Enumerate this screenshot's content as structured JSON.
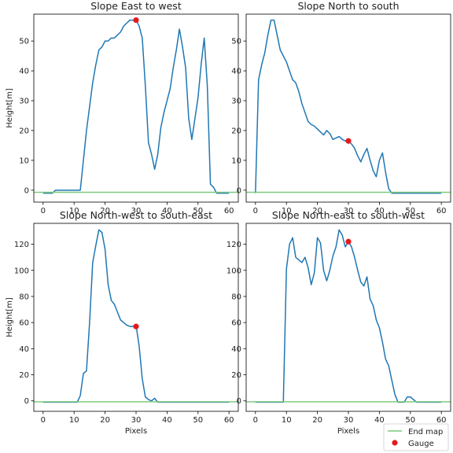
{
  "chart_data": [
    {
      "type": "line",
      "title": "Slope East to west",
      "xlabel": "",
      "ylabel": "Height[m]",
      "xlim": [
        -3,
        63
      ],
      "ylim": [
        -4,
        59
      ],
      "xticks": [
        0,
        10,
        20,
        30,
        40,
        50,
        60
      ],
      "yticks": [
        0,
        10,
        20,
        30,
        40,
        50
      ],
      "show_xtick_labels": true,
      "series": [
        {
          "role": "profile",
          "x": [
            0,
            1,
            2,
            3,
            4,
            5,
            6,
            7,
            8,
            9,
            10,
            11,
            12,
            13,
            14,
            15,
            16,
            17,
            18,
            19,
            20,
            21,
            22,
            23,
            24,
            25,
            26,
            27,
            28,
            29,
            30,
            31,
            32,
            33,
            34,
            35,
            36,
            37,
            38,
            39,
            40,
            41,
            42,
            43,
            44,
            45,
            46,
            47,
            48,
            49,
            50,
            51,
            52,
            53,
            54,
            55,
            56,
            57,
            58,
            59,
            60
          ],
          "y": [
            -1,
            -1,
            -1,
            -1,
            0,
            0,
            0,
            0,
            0,
            0,
            0,
            0,
            0,
            10,
            20,
            28,
            36,
            42,
            47,
            48,
            50,
            50,
            51,
            51,
            52,
            53,
            55,
            56,
            57,
            57,
            57,
            55,
            51,
            35,
            16,
            12,
            7,
            12,
            21,
            26,
            30,
            34,
            41,
            47,
            54,
            48,
            41,
            24,
            17,
            24,
            31,
            42,
            51,
            35,
            2,
            1,
            -1,
            -1,
            -1,
            -1,
            -1
          ]
        },
        {
          "role": "end_map",
          "name": "End map",
          "y": -0.7
        },
        {
          "role": "gauge",
          "name": "Gauge",
          "x": 30,
          "y": 57
        }
      ]
    },
    {
      "type": "line",
      "title": "Slope North to south",
      "xlabel": "",
      "ylabel": "",
      "xlim": [
        -3,
        63
      ],
      "ylim": [
        -4,
        59
      ],
      "xticks": [
        0,
        10,
        20,
        30,
        40,
        50,
        60
      ],
      "yticks": [
        0,
        10,
        20,
        30,
        40,
        50
      ],
      "show_xtick_labels": true,
      "series": [
        {
          "role": "profile",
          "x": [
            0,
            1,
            2,
            3,
            4,
            5,
            6,
            7,
            8,
            9,
            10,
            11,
            12,
            13,
            14,
            15,
            16,
            17,
            18,
            19,
            20,
            21,
            22,
            23,
            24,
            25,
            26,
            27,
            28,
            29,
            30,
            31,
            32,
            33,
            34,
            35,
            36,
            37,
            38,
            39,
            40,
            41,
            42,
            43,
            44,
            45,
            46,
            47,
            48,
            49,
            50,
            51,
            52,
            53,
            54,
            55,
            56,
            57,
            58,
            59,
            60
          ],
          "y": [
            -1,
            37,
            42,
            46,
            52,
            57,
            57,
            52,
            47,
            45,
            43,
            40,
            37,
            36,
            33,
            29,
            26,
            23,
            22,
            21.5,
            20.5,
            19.5,
            18.5,
            20,
            19,
            17,
            17.5,
            18,
            17,
            16.5,
            16.5,
            15.5,
            14,
            11.5,
            9.5,
            12,
            14,
            10,
            6.5,
            4.5,
            10,
            12.5,
            6,
            0.5,
            -1,
            -1,
            -1,
            -1,
            -1,
            -1,
            -1,
            -1,
            -1,
            -1,
            -1,
            -1,
            -1,
            -1,
            -1,
            -1,
            -1
          ]
        },
        {
          "role": "end_map",
          "name": "End map",
          "y": -0.7
        },
        {
          "role": "gauge",
          "name": "Gauge",
          "x": 30,
          "y": 16.5
        }
      ]
    },
    {
      "type": "line",
      "title": "Slope North-west to south-east",
      "xlabel": "Pixels",
      "ylabel": "Height[m]",
      "xlim": [
        -3,
        63
      ],
      "ylim": [
        -8,
        136
      ],
      "xticks": [
        0,
        10,
        20,
        30,
        40,
        50,
        60
      ],
      "yticks": [
        0,
        20,
        40,
        60,
        80,
        100,
        120
      ],
      "show_xtick_labels": true,
      "series": [
        {
          "role": "profile",
          "x": [
            0,
            1,
            2,
            3,
            4,
            5,
            6,
            7,
            8,
            9,
            10,
            11,
            12,
            13,
            14,
            15,
            16,
            17,
            18,
            19,
            20,
            21,
            22,
            23,
            24,
            25,
            26,
            27,
            28,
            29,
            30,
            31,
            32,
            33,
            34,
            35,
            36,
            37,
            38,
            39,
            40,
            41,
            42,
            43,
            44,
            45,
            46,
            47,
            48,
            49,
            50,
            51,
            52,
            53,
            54,
            55,
            56,
            57,
            58,
            59,
            60
          ],
          "y": [
            -1,
            -1,
            -1,
            -1,
            -1,
            -1,
            -1,
            -1,
            -1,
            -1,
            -1,
            -1,
            4,
            21,
            23,
            60,
            106,
            119,
            131,
            129,
            116,
            89,
            77,
            74,
            68,
            62,
            60,
            58,
            57,
            57,
            58,
            42,
            17,
            3,
            1,
            0,
            2,
            -1,
            -1,
            -1,
            -1,
            -1,
            -1,
            -1,
            -1,
            -1,
            -1,
            -1,
            -1,
            -1,
            -1,
            -1,
            -1,
            -1,
            -1,
            -1,
            -1,
            -1,
            -1,
            -1,
            -1
          ]
        },
        {
          "role": "end_map",
          "name": "End map",
          "y": -0.7
        },
        {
          "role": "gauge",
          "name": "Gauge",
          "x": 30,
          "y": 57
        }
      ]
    },
    {
      "type": "line",
      "title": "Slope North-east to south-west",
      "xlabel": "Pixels",
      "ylabel": "",
      "xlim": [
        -3,
        63
      ],
      "ylim": [
        -8,
        136
      ],
      "xticks": [
        0,
        10,
        20,
        30,
        40,
        50,
        60
      ],
      "yticks": [
        0,
        20,
        40,
        60,
        80,
        100,
        120
      ],
      "show_xtick_labels": true,
      "series": [
        {
          "role": "profile",
          "x": [
            0,
            1,
            2,
            3,
            4,
            5,
            6,
            7,
            8,
            9,
            10,
            11,
            12,
            13,
            14,
            15,
            16,
            17,
            18,
            19,
            20,
            21,
            22,
            23,
            24,
            25,
            26,
            27,
            28,
            29,
            30,
            31,
            32,
            33,
            34,
            35,
            36,
            37,
            38,
            39,
            40,
            41,
            42,
            43,
            44,
            45,
            46,
            47,
            48,
            49,
            50,
            51,
            52,
            53,
            54,
            55,
            56,
            57,
            58,
            59,
            60
          ],
          "y": [
            -1,
            -1,
            -1,
            -1,
            -1,
            -1,
            -1,
            -1,
            -1,
            -1,
            101,
            120,
            125,
            110,
            108,
            106,
            110,
            102,
            89,
            98,
            125,
            121,
            100,
            92,
            100,
            111,
            118,
            131,
            127,
            118,
            122,
            118,
            110,
            100,
            91,
            88,
            95,
            78,
            73,
            62,
            56,
            45,
            32,
            27,
            16,
            5,
            -1,
            -1,
            -1,
            3,
            3,
            1,
            -1,
            -1,
            -1,
            -1,
            -1,
            -1,
            -1,
            -1,
            -1
          ]
        },
        {
          "role": "end_map",
          "name": "End map",
          "y": -0.7
        },
        {
          "role": "gauge",
          "name": "Gauge",
          "x": 30,
          "y": 122
        }
      ]
    }
  ],
  "legend": {
    "placement": "bottom-right",
    "entries": [
      {
        "label": "End map",
        "color": "#7fc97f",
        "kind": "line"
      },
      {
        "label": "Gauge",
        "color": "#d62728",
        "kind": "dot"
      }
    ]
  },
  "colors": {
    "profile": "#1f77b4",
    "end_map": "#7fc97f",
    "gauge": "#e41a1c",
    "axes": "#000000"
  }
}
